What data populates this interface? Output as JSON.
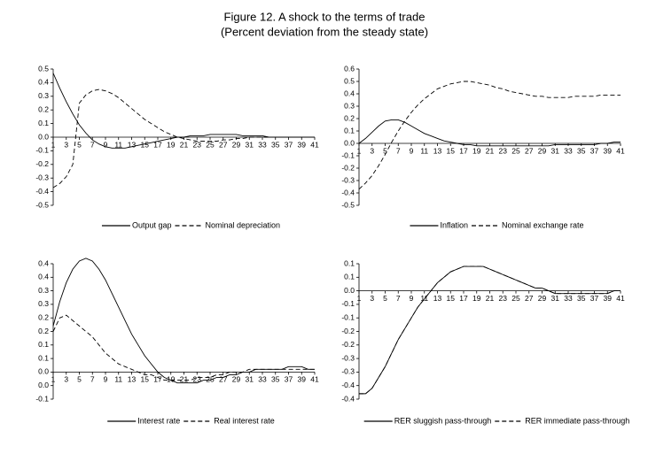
{
  "title": "Figure 12. A shock to the terms of trade",
  "subtitle": "(Percent deviation from the steady state)",
  "chart_data": [
    {
      "type": "line",
      "x": [
        1,
        2,
        3,
        4,
        5,
        6,
        7,
        8,
        9,
        10,
        11,
        12,
        13,
        14,
        15,
        16,
        17,
        18,
        19,
        20,
        21,
        22,
        23,
        24,
        25,
        26,
        27,
        28,
        29,
        30,
        31,
        32,
        33,
        34,
        35,
        36,
        37,
        38,
        39,
        40,
        41
      ],
      "xlim": [
        1,
        41
      ],
      "xticks": [
        1,
        3,
        5,
        7,
        9,
        11,
        13,
        15,
        17,
        19,
        21,
        23,
        25,
        27,
        29,
        31,
        33,
        35,
        37,
        39,
        41
      ],
      "ylim": [
        -0.5,
        0.5
      ],
      "yticks": [
        0.5,
        0.4,
        0.3,
        0.2,
        0.1,
        {
          "value": 0,
          "label": "0.0"
        },
        -0.1,
        -0.2,
        -0.3,
        -0.4,
        -0.5
      ],
      "series": [
        {
          "name": "Output gap",
          "color": "#000000",
          "style": "solid",
          "values": [
            0.47,
            0.36,
            0.26,
            0.17,
            0.09,
            0.03,
            -0.02,
            -0.05,
            -0.07,
            -0.08,
            -0.08,
            -0.08,
            -0.07,
            -0.06,
            -0.05,
            -0.04,
            -0.03,
            -0.02,
            -0.01,
            0,
            0,
            0.01,
            0.01,
            0.01,
            0.02,
            0.02,
            0.02,
            0.02,
            0.02,
            0.01,
            0.01,
            0.01,
            0.01,
            0,
            0,
            0,
            0,
            0,
            0,
            0,
            0
          ]
        },
        {
          "name": "Nominal depreciation",
          "color": "#000000",
          "style": "dashed",
          "values": [
            -0.37,
            -0.34,
            -0.29,
            -0.2,
            0.25,
            0.31,
            0.34,
            0.35,
            0.34,
            0.32,
            0.29,
            0.25,
            0.21,
            0.17,
            0.13,
            0.1,
            0.07,
            0.04,
            0.02,
            0,
            -0.01,
            -0.02,
            -0.03,
            -0.03,
            -0.03,
            -0.03,
            -0.02,
            -0.02,
            -0.01,
            -0.01,
            0,
            0,
            0,
            0,
            0,
            0,
            0,
            0,
            0,
            0,
            0
          ]
        }
      ]
    },
    {
      "type": "line",
      "x": [
        1,
        2,
        3,
        4,
        5,
        6,
        7,
        8,
        9,
        10,
        11,
        12,
        13,
        14,
        15,
        16,
        17,
        18,
        19,
        20,
        21,
        22,
        23,
        24,
        25,
        26,
        27,
        28,
        29,
        30,
        31,
        32,
        33,
        34,
        35,
        36,
        37,
        38,
        39,
        40,
        41
      ],
      "xlim": [
        1,
        41
      ],
      "xticks": [
        1,
        3,
        5,
        7,
        9,
        11,
        13,
        15,
        17,
        19,
        21,
        23,
        25,
        27,
        29,
        31,
        33,
        35,
        37,
        39,
        41
      ],
      "ylim": [
        -0.5,
        0.6
      ],
      "yticks": [
        0.6,
        0.5,
        0.4,
        0.3,
        0.2,
        0.1,
        {
          "value": 0,
          "label": "0.0"
        },
        -0.1,
        -0.2,
        -0.3,
        -0.4,
        -0.5
      ],
      "series": [
        {
          "name": "Inflation",
          "color": "#000000",
          "style": "solid",
          "values": [
            0,
            0.04,
            0.09,
            0.14,
            0.18,
            0.19,
            0.19,
            0.17,
            0.14,
            0.11,
            0.08,
            0.06,
            0.04,
            0.02,
            0.01,
            0,
            -0.01,
            -0.01,
            -0.02,
            -0.02,
            -0.02,
            -0.02,
            -0.02,
            -0.02,
            -0.02,
            -0.02,
            -0.02,
            -0.02,
            -0.02,
            -0.02,
            -0.01,
            -0.01,
            -0.01,
            -0.01,
            -0.01,
            -0.01,
            -0.01,
            0,
            0,
            0.01,
            0.01
          ]
        },
        {
          "name": "Nominal exchange rate",
          "color": "#000000",
          "style": "dashed",
          "values": [
            -0.37,
            -0.32,
            -0.26,
            -0.18,
            -0.09,
            0.01,
            0.1,
            0.18,
            0.25,
            0.31,
            0.36,
            0.4,
            0.44,
            0.46,
            0.48,
            0.49,
            0.5,
            0.5,
            0.49,
            0.48,
            0.47,
            0.45,
            0.44,
            0.42,
            0.41,
            0.4,
            0.39,
            0.38,
            0.38,
            0.37,
            0.37,
            0.37,
            0.37,
            0.38,
            0.38,
            0.38,
            0.38,
            0.39,
            0.39,
            0.39,
            0.39
          ]
        }
      ]
    },
    {
      "type": "line",
      "x": [
        1,
        2,
        3,
        4,
        5,
        6,
        7,
        8,
        9,
        10,
        11,
        12,
        13,
        14,
        15,
        16,
        17,
        18,
        19,
        20,
        21,
        22,
        23,
        24,
        25,
        26,
        27,
        28,
        29,
        30,
        31,
        32,
        33,
        34,
        35,
        36,
        37,
        38,
        39,
        40,
        41
      ],
      "xlim": [
        1,
        41
      ],
      "xticks": [
        1,
        3,
        5,
        7,
        9,
        11,
        13,
        15,
        17,
        19,
        21,
        23,
        25,
        27,
        29,
        31,
        33,
        35,
        37,
        39,
        41
      ],
      "ylim": [
        -0.1,
        0.4
      ],
      "yticks": [
        0.4,
        {
          "value": 0.35,
          "label": "0.4"
        },
        0.3,
        {
          "value": 0.25,
          "label": "0.3"
        },
        0.2,
        {
          "value": 0.15,
          "label": "0.2"
        },
        0.1,
        {
          "value": 0.05,
          "label": "0.1"
        },
        {
          "value": 0,
          "label": "0.0"
        },
        {
          "value": -0.05,
          "label": "0.0"
        },
        -0.1
      ],
      "series": [
        {
          "name": "Interest rate",
          "color": "#000000",
          "style": "solid",
          "values": [
            0.17,
            0.26,
            0.33,
            0.38,
            0.41,
            0.42,
            0.41,
            0.38,
            0.34,
            0.29,
            0.24,
            0.19,
            0.14,
            0.1,
            0.06,
            0.03,
            0,
            -0.02,
            -0.03,
            -0.04,
            -0.04,
            -0.04,
            -0.04,
            -0.03,
            -0.03,
            -0.02,
            -0.02,
            -0.01,
            -0.01,
            0,
            0,
            0.01,
            0.01,
            0.01,
            0.01,
            0.01,
            0.02,
            0.02,
            0.02,
            0.01,
            0.01
          ]
        },
        {
          "name": "Real interest rate",
          "color": "#000000",
          "style": "dashed",
          "values": [
            0.15,
            0.2,
            0.21,
            0.19,
            0.17,
            0.15,
            0.13,
            0.1,
            0.07,
            0.05,
            0.03,
            0.02,
            0.01,
            0,
            -0.01,
            -0.01,
            -0.02,
            -0.03,
            -0.03,
            -0.03,
            -0.03,
            -0.03,
            -0.02,
            -0.02,
            -0.02,
            -0.01,
            -0.01,
            0,
            0,
            0,
            0.01,
            0.01,
            0.01,
            0.01,
            0.01,
            0.01,
            0.01,
            0.01,
            0.01,
            0.01,
            0.01
          ]
        }
      ]
    },
    {
      "type": "line",
      "x": [
        1,
        2,
        3,
        4,
        5,
        6,
        7,
        8,
        9,
        10,
        11,
        12,
        13,
        14,
        15,
        16,
        17,
        18,
        19,
        20,
        21,
        22,
        23,
        24,
        25,
        26,
        27,
        28,
        29,
        30,
        31,
        32,
        33,
        34,
        35,
        36,
        37,
        38,
        39,
        40,
        41
      ],
      "xlim": [
        1,
        41
      ],
      "xticks": [
        1,
        3,
        5,
        7,
        9,
        11,
        13,
        15,
        17,
        19,
        21,
        23,
        25,
        27,
        29,
        31,
        33,
        35,
        37,
        39,
        41
      ],
      "ylim": [
        -0.4,
        0.1
      ],
      "yticks": [
        0.1,
        {
          "value": 0.05,
          "label": "0.1"
        },
        {
          "value": 0,
          "label": "0.0"
        },
        {
          "value": -0.05,
          "label": "-0.1"
        },
        -0.1,
        {
          "value": -0.15,
          "label": "-0.2"
        },
        -0.2,
        {
          "value": -0.25,
          "label": "-0.3"
        },
        -0.3,
        {
          "value": -0.35,
          "label": "-0.4"
        },
        -0.4
      ],
      "series": [
        {
          "name": "RER sluggish pass-through",
          "color": "#000000",
          "style": "solid",
          "values": [
            -0.38,
            -0.38,
            -0.36,
            -0.32,
            -0.28,
            -0.23,
            -0.18,
            -0.14,
            -0.1,
            -0.06,
            -0.03,
            0,
            0.03,
            0.05,
            0.07,
            0.08,
            0.09,
            0.09,
            0.09,
            0.09,
            0.08,
            0.07,
            0.06,
            0.05,
            0.04,
            0.03,
            0.02,
            0.01,
            0.01,
            0,
            -0.01,
            -0.01,
            -0.01,
            -0.01,
            -0.01,
            -0.01,
            -0.01,
            -0.01,
            -0.01,
            0,
            0
          ]
        },
        {
          "name": "RER immediate pass-through",
          "color": "#000000",
          "style": "dashed",
          "values": [
            -0.38,
            -0.38,
            -0.36,
            -0.32,
            -0.28,
            -0.23,
            -0.18,
            -0.14,
            -0.1,
            -0.06,
            -0.03,
            0,
            0.03,
            0.05,
            0.07,
            0.08,
            0.09,
            0.09,
            0.09,
            0.09,
            0.08,
            0.07,
            0.06,
            0.05,
            0.04,
            0.03,
            0.02,
            0.01,
            0.01,
            0,
            -0.01,
            -0.01,
            -0.01,
            -0.01,
            -0.01,
            -0.01,
            -0.01,
            -0.01,
            -0.01,
            0,
            0
          ]
        }
      ]
    }
  ]
}
